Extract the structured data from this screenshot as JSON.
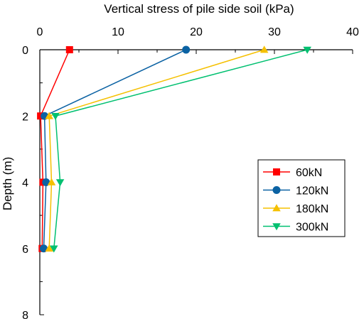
{
  "chart_data": {
    "type": "line",
    "title": "",
    "xlabel": "Vertical stress of pile side soil (kPa)",
    "ylabel": "Depth (m)",
    "xlim": [
      0,
      40
    ],
    "ylim": [
      0,
      8
    ],
    "y_inverted": true,
    "x_axis_position": "top",
    "x_ticks": [
      "0",
      "10",
      "20",
      "30",
      "40"
    ],
    "y_ticks": [
      "0",
      "2",
      "4",
      "6",
      "8"
    ],
    "grid": false,
    "legend_position": "right",
    "series": [
      {
        "name": "60kN",
        "color": "#ff0000",
        "marker": "square",
        "points": [
          {
            "x": 3.8,
            "y": 0
          },
          {
            "x": 0.1,
            "y": 2
          },
          {
            "x": 0.4,
            "y": 4
          },
          {
            "x": 0.3,
            "y": 6
          }
        ]
      },
      {
        "name": "120kN",
        "color": "#0b62a3",
        "marker": "circle",
        "points": [
          {
            "x": 18.7,
            "y": 0
          },
          {
            "x": 0.6,
            "y": 2
          },
          {
            "x": 0.8,
            "y": 4
          },
          {
            "x": 0.5,
            "y": 6
          }
        ]
      },
      {
        "name": "180kN",
        "color": "#f5c000",
        "marker": "triangle-up",
        "points": [
          {
            "x": 28.7,
            "y": 0
          },
          {
            "x": 1.2,
            "y": 2
          },
          {
            "x": 1.5,
            "y": 4
          },
          {
            "x": 1.2,
            "y": 6
          }
        ]
      },
      {
        "name": "300kN",
        "color": "#00c070",
        "marker": "triangle-down",
        "points": [
          {
            "x": 34.2,
            "y": 0
          },
          {
            "x": 2.0,
            "y": 2
          },
          {
            "x": 2.6,
            "y": 4
          },
          {
            "x": 1.8,
            "y": 6
          }
        ]
      }
    ]
  }
}
